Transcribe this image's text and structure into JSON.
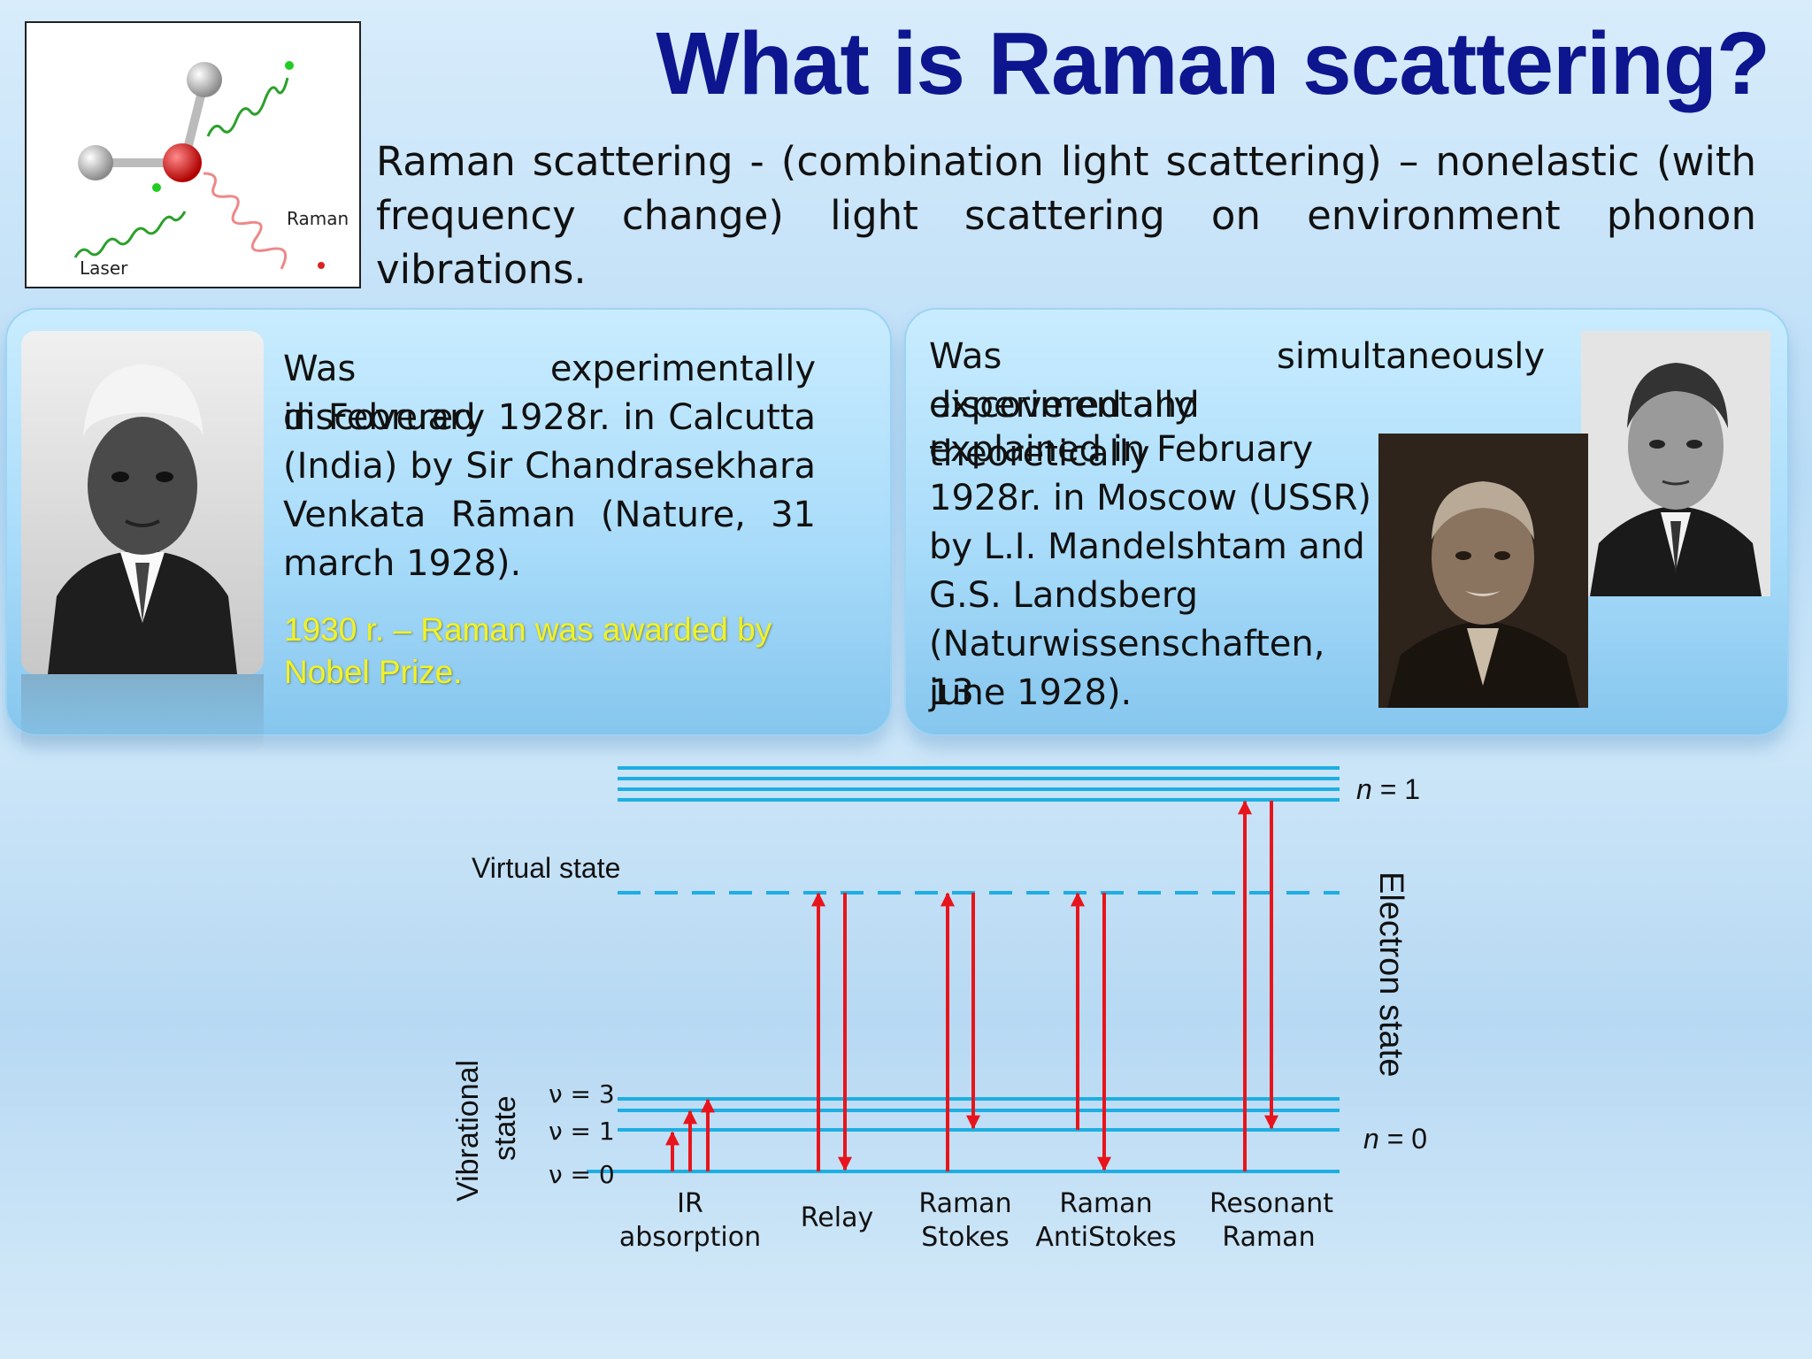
{
  "slide": {
    "title": "What is Raman scattering?",
    "intro": "Raman scattering - (combination light scattering) – nonelastic (with frequency change) light scattering on environment phonon vibrations."
  },
  "figure": {
    "raman_label": "Raman",
    "laser_label": "Laser"
  },
  "left_panel": {
    "lines": [
      "Was experimentally discovered",
      "in February 1928r. in Calcutta",
      "(India) by Sir Chandrasekhara",
      "Venkata Rāman (Nature, 31",
      "march 1928)."
    ],
    "nobel_lines": [
      "1930 r. – Raman was awarded by",
      "Nobel Prize."
    ],
    "nobel_color": "#f2f226"
  },
  "right_panel": {
    "lines": [
      "Was simultaneously experimentally",
      "discovered and theoretically",
      "explained in February",
      "1928r. in Moscow (USSR)",
      "by L.I. Mandelshtam  and",
      "G.S. Landsberg",
      "(Naturwissenschaften, 13",
      "june 1928)."
    ]
  },
  "diagram": {
    "virtual_state": "Virtual state",
    "n1": "= 1",
    "n0": "= 0",
    "n_symbol": "n",
    "electron_state": "Electron state",
    "vibrational": "Vibrational",
    "vibrational2": "state",
    "v3": "ν = 3",
    "v1": "ν = 1",
    "v0": "ν = 0",
    "processes": [
      {
        "line1": "IR",
        "line2": "absorption"
      },
      {
        "line1": "Relay",
        "line2": ""
      },
      {
        "line1": "Raman",
        "line2": "Stokes"
      },
      {
        "line1": "Raman",
        "line2": "AntiStokes"
      },
      {
        "line1": "Resonant",
        "line2": "Raman"
      }
    ],
    "level_color": "#1eaee3",
    "arrow_color": "#e8141c"
  }
}
